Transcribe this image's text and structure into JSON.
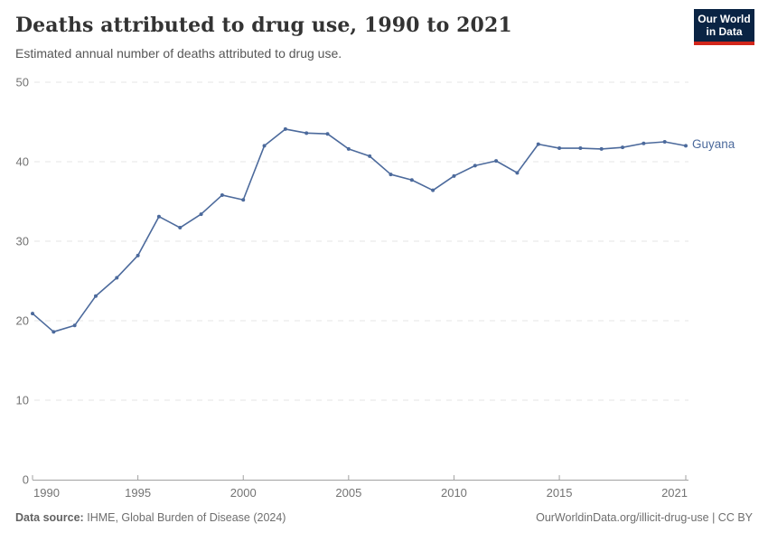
{
  "header": {
    "title": "Deaths attributed to drug use, 1990 to 2021",
    "subtitle": "Estimated annual number of deaths attributed to drug use.",
    "logo": {
      "line1": "Our World",
      "line2": "in Data",
      "bg_color": "#0a2444",
      "accent_color": "#d2261b"
    }
  },
  "chart_data": {
    "type": "line",
    "title": "Deaths attributed to drug use, 1990 to 2021",
    "xlabel": "",
    "ylabel": "",
    "x": [
      1990,
      1991,
      1992,
      1993,
      1994,
      1995,
      1996,
      1997,
      1998,
      1999,
      2000,
      2001,
      2002,
      2003,
      2004,
      2005,
      2006,
      2007,
      2008,
      2009,
      2010,
      2011,
      2012,
      2013,
      2014,
      2015,
      2016,
      2017,
      2018,
      2019,
      2020,
      2021
    ],
    "series": [
      {
        "name": "Guyana",
        "color": "#4c6a9c",
        "values": [
          20.9,
          18.6,
          19.4,
          23.1,
          25.4,
          28.2,
          33.1,
          31.7,
          33.4,
          35.8,
          35.2,
          42.0,
          44.1,
          43.6,
          43.5,
          41.6,
          40.7,
          38.4,
          37.7,
          36.4,
          38.2,
          39.5,
          40.1,
          38.6,
          42.2,
          41.7,
          41.7,
          41.6,
          41.8,
          42.3,
          42.5,
          42.0
        ]
      }
    ],
    "xlim": [
      1990,
      2021
    ],
    "ylim": [
      0,
      50
    ],
    "xticks": [
      1990,
      1995,
      2000,
      2005,
      2010,
      2015,
      2021
    ],
    "yticks": [
      0,
      10,
      20,
      30,
      40,
      50
    ],
    "grid": "horizontal-dashed",
    "legend_position": "right-of-last-point",
    "colors": {
      "grid": "#e4e4e4",
      "axis": "#a1a1a1",
      "tick_label": "#737373"
    }
  },
  "footer": {
    "source_label": "Data source:",
    "source_text": "IHME, Global Burden of Disease (2024)",
    "credit": "OurWorldinData.org/illicit-drug-use | CC BY"
  }
}
